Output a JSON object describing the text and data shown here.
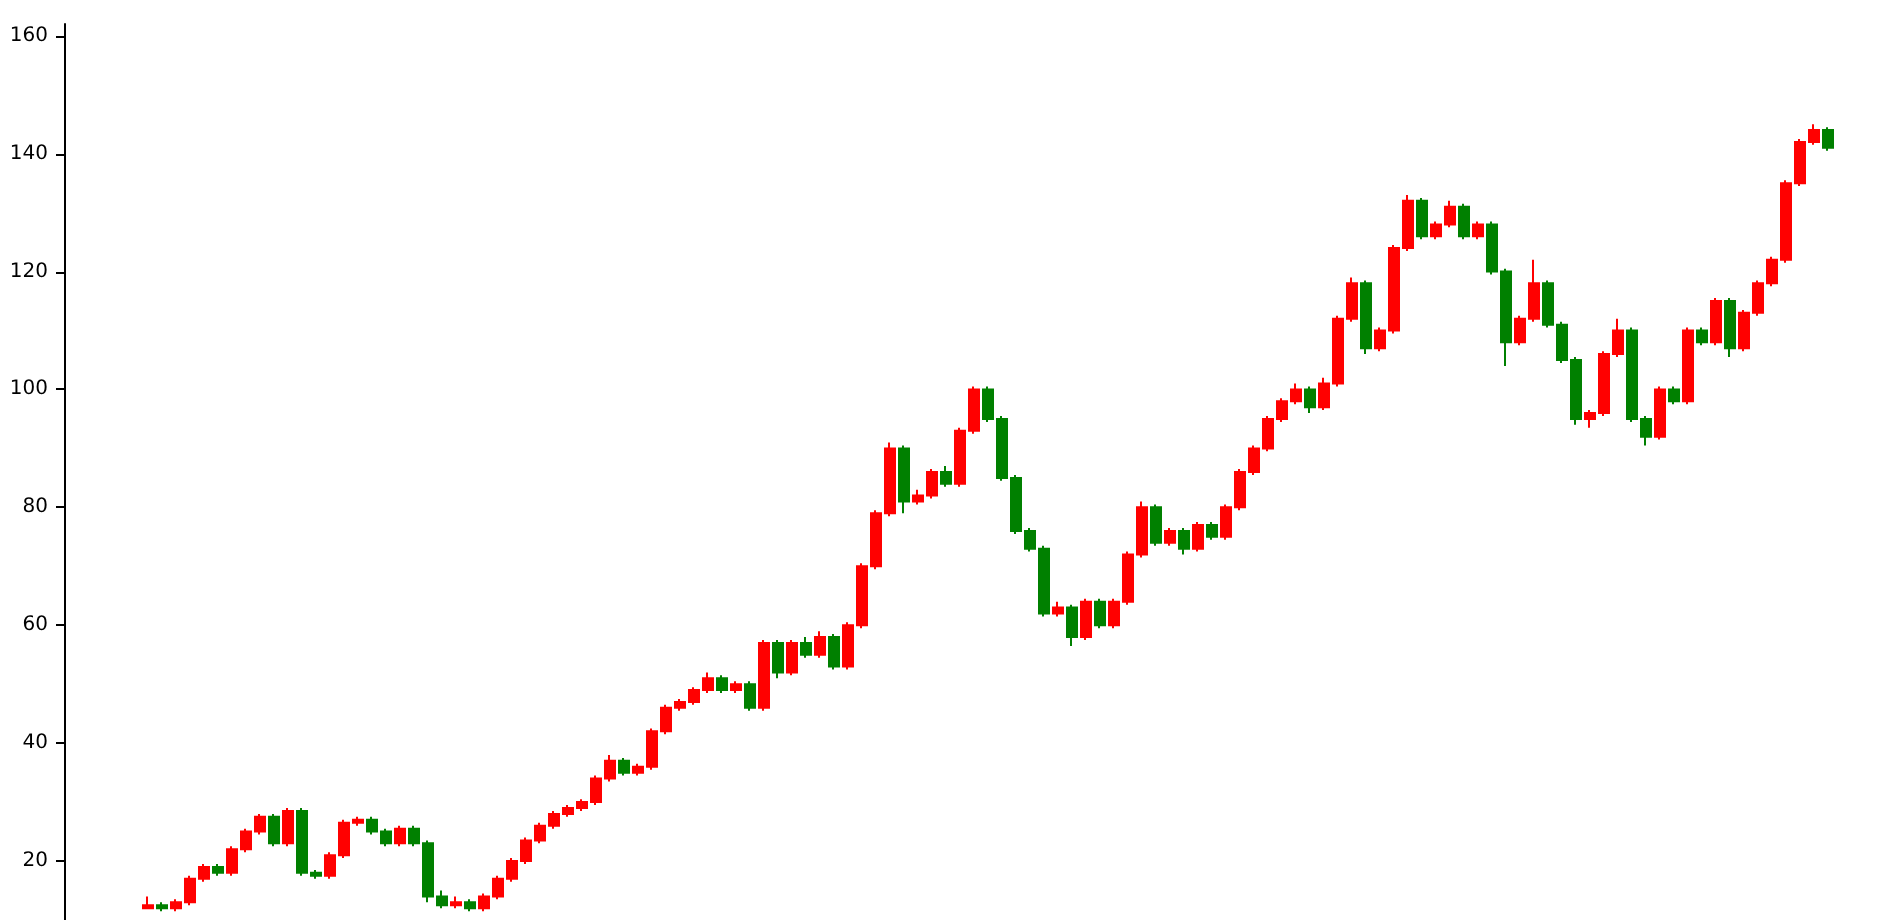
{
  "chart_data": {
    "type": "candlestick",
    "categories": [
      null,
      null,
      null,
      null,
      null,
      null,
      null,
      null,
      null,
      null,
      null,
      null,
      null,
      null,
      null,
      null,
      null,
      null,
      null,
      null,
      null,
      null,
      null,
      null,
      null,
      null,
      null,
      null,
      null,
      null,
      null,
      null,
      null,
      null,
      null,
      null,
      null,
      null,
      null,
      null,
      null,
      null,
      null,
      null,
      null,
      null,
      null,
      null,
      null,
      null,
      null,
      null,
      null,
      null,
      null,
      null,
      null,
      null,
      null,
      null,
      null,
      null,
      null,
      null,
      null,
      null,
      null,
      null,
      null,
      null,
      null,
      null,
      null,
      null,
      null,
      null,
      null,
      null,
      null,
      null,
      null,
      null,
      null,
      null,
      null,
      null,
      null,
      null,
      null,
      null,
      null,
      null,
      null,
      null,
      null,
      null,
      null,
      null,
      null,
      null,
      null,
      null,
      null,
      null,
      null,
      null,
      null,
      null,
      null,
      null,
      null,
      null,
      null,
      null,
      null,
      null,
      null,
      null,
      null,
      null,
      null
    ],
    "ohlc": [
      [
        12,
        14,
        12,
        12.5
      ],
      [
        12.5,
        13,
        11.5,
        12
      ],
      [
        12,
        13.5,
        11.5,
        13
      ],
      [
        13,
        17.5,
        12.5,
        17
      ],
      [
        17,
        19.5,
        16.5,
        19
      ],
      [
        19,
        19.5,
        17.5,
        18
      ],
      [
        18,
        22.5,
        17.5,
        22
      ],
      [
        22,
        25.5,
        21.5,
        25
      ],
      [
        25,
        28,
        24.5,
        27.5
      ],
      [
        27.5,
        28,
        22.5,
        23
      ],
      [
        23,
        29,
        22.5,
        28.5
      ],
      [
        28.5,
        29,
        17.5,
        18
      ],
      [
        18,
        18.5,
        17,
        17.5
      ],
      [
        17.5,
        21.5,
        17,
        21
      ],
      [
        21,
        27,
        20.5,
        26.5
      ],
      [
        26.5,
        27.5,
        26,
        27
      ],
      [
        27,
        27.5,
        24.5,
        25
      ],
      [
        25,
        25.5,
        22.5,
        23
      ],
      [
        23,
        26,
        22.5,
        25.5
      ],
      [
        25.5,
        26,
        22.5,
        23
      ],
      [
        23,
        23.5,
        13,
        14
      ],
      [
        14,
        15,
        12,
        12.5
      ],
      [
        12.5,
        14,
        12,
        13
      ],
      [
        13,
        13.5,
        11.5,
        12
      ],
      [
        12,
        14.5,
        11.5,
        14
      ],
      [
        14,
        17.5,
        13.5,
        17
      ],
      [
        17,
        20.5,
        16.5,
        20
      ],
      [
        20,
        24,
        19.5,
        23.5
      ],
      [
        23.5,
        26.5,
        23,
        26
      ],
      [
        26,
        28.5,
        25.5,
        28
      ],
      [
        28,
        29.5,
        27.5,
        29
      ],
      [
        29,
        30.5,
        28.5,
        30
      ],
      [
        30,
        34.5,
        29.5,
        34
      ],
      [
        34,
        38,
        33.5,
        37
      ],
      [
        37,
        37.5,
        34.5,
        35
      ],
      [
        35,
        36.5,
        34.5,
        36
      ],
      [
        36,
        42.5,
        35.5,
        42
      ],
      [
        42,
        46.5,
        41.5,
        46
      ],
      [
        46,
        47.5,
        45.5,
        47
      ],
      [
        47,
        49.5,
        46.5,
        49
      ],
      [
        49,
        52,
        48.5,
        51
      ],
      [
        51,
        51.5,
        48.5,
        49
      ],
      [
        49,
        50.5,
        48.5,
        50
      ],
      [
        50,
        50.5,
        45.5,
        46
      ],
      [
        46,
        57.5,
        45.5,
        57
      ],
      [
        57,
        57.5,
        51,
        52
      ],
      [
        52,
        57.5,
        51.5,
        57
      ],
      [
        57,
        58,
        54.5,
        55
      ],
      [
        55,
        59,
        54.5,
        58
      ],
      [
        58,
        58.5,
        52.5,
        53
      ],
      [
        53,
        60.5,
        52.5,
        60
      ],
      [
        60,
        70.5,
        59.5,
        70
      ],
      [
        70,
        79.5,
        69.5,
        79
      ],
      [
        79,
        91,
        78.5,
        90
      ],
      [
        90,
        90.5,
        79,
        81
      ],
      [
        81,
        83,
        80.5,
        82
      ],
      [
        82,
        86.5,
        81.5,
        86
      ],
      [
        86,
        87,
        83.5,
        84
      ],
      [
        84,
        93.5,
        83.5,
        93
      ],
      [
        93,
        100.5,
        92.5,
        100
      ],
      [
        100,
        100.5,
        94.5,
        95
      ],
      [
        95,
        95.5,
        84.5,
        85
      ],
      [
        85,
        85.5,
        75.5,
        76
      ],
      [
        76,
        76.5,
        72.5,
        73
      ],
      [
        73,
        73.5,
        61.5,
        62
      ],
      [
        62,
        64,
        61.5,
        63
      ],
      [
        63,
        63.5,
        56.5,
        58
      ],
      [
        58,
        64.5,
        57.5,
        64
      ],
      [
        64,
        64.5,
        59.5,
        60
      ],
      [
        60,
        64.5,
        59.5,
        64
      ],
      [
        64,
        72.5,
        63.5,
        72
      ],
      [
        72,
        81,
        71.5,
        80
      ],
      [
        80,
        80.5,
        73.5,
        74
      ],
      [
        74,
        76.5,
        73.5,
        76
      ],
      [
        76,
        76.5,
        72,
        73
      ],
      [
        73,
        77.5,
        72.5,
        77
      ],
      [
        77,
        77.5,
        74.5,
        75
      ],
      [
        75,
        80.5,
        74.5,
        80
      ],
      [
        80,
        86.5,
        79.5,
        86
      ],
      [
        86,
        90.5,
        85.5,
        90
      ],
      [
        90,
        95.5,
        89.5,
        95
      ],
      [
        95,
        98.5,
        94.5,
        98
      ],
      [
        98,
        101,
        97.5,
        100
      ],
      [
        100,
        100.5,
        96,
        97
      ],
      [
        97,
        102,
        96.5,
        101
      ],
      [
        101,
        112.5,
        100.5,
        112
      ],
      [
        112,
        119,
        111.5,
        118
      ],
      [
        118,
        118.5,
        106,
        107
      ],
      [
        107,
        110.5,
        106.5,
        110
      ],
      [
        110,
        124.5,
        109.5,
        124
      ],
      [
        124,
        133,
        123.5,
        132
      ],
      [
        132,
        132.5,
        125.5,
        126
      ],
      [
        126,
        128.5,
        125.5,
        128
      ],
      [
        128,
        132,
        127.5,
        131
      ],
      [
        131,
        131.5,
        125.5,
        126
      ],
      [
        126,
        128.5,
        125.5,
        128
      ],
      [
        128,
        128.5,
        119.5,
        120
      ],
      [
        120,
        120.5,
        104,
        108
      ],
      [
        108,
        112.5,
        107.5,
        112
      ],
      [
        112,
        122,
        111.5,
        118
      ],
      [
        118,
        118.5,
        110.5,
        111
      ],
      [
        111,
        111.5,
        104.5,
        105
      ],
      [
        105,
        105.5,
        94,
        95
      ],
      [
        95,
        96.5,
        93.5,
        96
      ],
      [
        96,
        106.5,
        95.5,
        106
      ],
      [
        106,
        112,
        105.5,
        110
      ],
      [
        110,
        110.5,
        94.5,
        95
      ],
      [
        95,
        95.5,
        90.5,
        92
      ],
      [
        92,
        100.5,
        91.5,
        100
      ],
      [
        100,
        100.5,
        97.5,
        98
      ],
      [
        98,
        110.5,
        97.5,
        110
      ],
      [
        110,
        110.5,
        107.5,
        108
      ],
      [
        108,
        115.5,
        107.5,
        115
      ],
      [
        115,
        115.5,
        105.5,
        107
      ],
      [
        107,
        113.5,
        106.5,
        113
      ],
      [
        113,
        118.5,
        112.5,
        118
      ],
      [
        118,
        122.5,
        117.5,
        122
      ],
      [
        122,
        135.5,
        121.5,
        135
      ],
      [
        135,
        142.5,
        134.5,
        142
      ],
      [
        142,
        145,
        141.5,
        144
      ],
      [
        144,
        144.5,
        140.5,
        141
      ]
    ],
    "colors": [
      "#ff0000",
      "#008000",
      "#ff0000",
      "#ff0000",
      "#ff0000",
      "#008000",
      "#ff0000",
      "#ff0000",
      "#ff0000",
      "#008000",
      "#ff0000",
      "#008000",
      "#008000",
      "#ff0000",
      "#ff0000",
      "#ff0000",
      "#008000",
      "#008000",
      "#ff0000",
      "#008000",
      "#008000",
      "#008000",
      "#ff0000",
      "#008000",
      "#ff0000",
      "#ff0000",
      "#ff0000",
      "#ff0000",
      "#ff0000",
      "#ff0000",
      "#ff0000",
      "#ff0000",
      "#ff0000",
      "#ff0000",
      "#008000",
      "#ff0000",
      "#ff0000",
      "#ff0000",
      "#ff0000",
      "#ff0000",
      "#ff0000",
      "#008000",
      "#ff0000",
      "#008000",
      "#ff0000",
      "#008000",
      "#ff0000",
      "#008000",
      "#ff0000",
      "#008000",
      "#ff0000",
      "#ff0000",
      "#ff0000",
      "#ff0000",
      "#008000",
      "#ff0000",
      "#ff0000",
      "#008000",
      "#ff0000",
      "#ff0000",
      "#008000",
      "#008000",
      "#008000",
      "#008000",
      "#008000",
      "#ff0000",
      "#008000",
      "#ff0000",
      "#008000",
      "#ff0000",
      "#ff0000",
      "#ff0000",
      "#008000",
      "#ff0000",
      "#008000",
      "#ff0000",
      "#008000",
      "#ff0000",
      "#ff0000",
      "#ff0000",
      "#ff0000",
      "#ff0000",
      "#ff0000",
      "#008000",
      "#ff0000",
      "#ff0000",
      "#ff0000",
      "#008000",
      "#ff0000",
      "#ff0000",
      "#ff0000",
      "#008000",
      "#ff0000",
      "#ff0000",
      "#008000",
      "#ff0000",
      "#008000",
      "#008000",
      "#ff0000",
      "#ff0000",
      "#008000",
      "#008000",
      "#008000",
      "#ff0000",
      "#ff0000",
      "#ff0000",
      "#008000",
      "#008000",
      "#ff0000",
      "#008000",
      "#ff0000",
      "#008000",
      "#ff0000",
      "#008000",
      "#ff0000",
      "#ff0000",
      "#ff0000",
      "#ff0000",
      "#ff0000",
      "#ff0000",
      "#008000"
    ],
    "ylim": [
      10,
      162
    ],
    "yticks": [
      20,
      40,
      60,
      80,
      100,
      120,
      140,
      160
    ],
    "tick_labels": "y",
    "grid": false
  }
}
